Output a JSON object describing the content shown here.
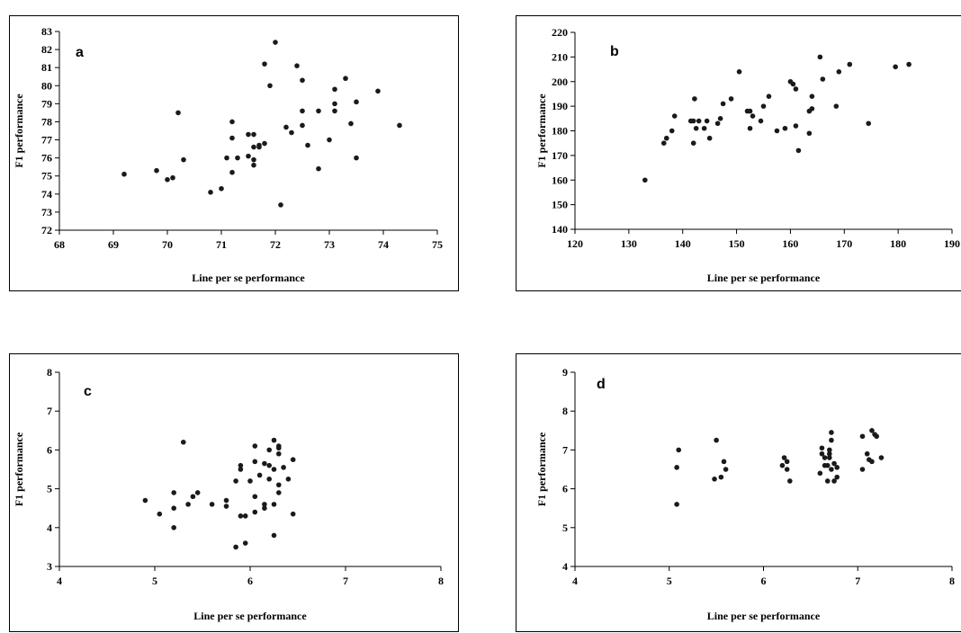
{
  "chart_data": [
    {
      "id": "a",
      "type": "scatter",
      "panel_label": "a",
      "xlabel": "Line per se performance",
      "ylabel": "F1 performance",
      "xlim": [
        68,
        75
      ],
      "ylim": [
        72,
        83
      ],
      "xticks": [
        68,
        69,
        70,
        71,
        72,
        73,
        74,
        75
      ],
      "yticks": [
        72,
        73,
        74,
        75,
        76,
        77,
        78,
        79,
        80,
        81,
        82,
        83
      ],
      "grid": false,
      "legend": "none",
      "points": [
        [
          69.2,
          75.1
        ],
        [
          69.8,
          75.3
        ],
        [
          70.0,
          74.8
        ],
        [
          70.1,
          74.9
        ],
        [
          70.2,
          78.5
        ],
        [
          70.3,
          75.9
        ],
        [
          70.8,
          74.1
        ],
        [
          71.0,
          74.3
        ],
        [
          71.1,
          76.0
        ],
        [
          71.2,
          78.0
        ],
        [
          71.2,
          77.1
        ],
        [
          71.2,
          75.2
        ],
        [
          71.3,
          76.0
        ],
        [
          71.5,
          76.1
        ],
        [
          71.5,
          77.3
        ],
        [
          71.6,
          75.9
        ],
        [
          71.6,
          77.3
        ],
        [
          71.6,
          76.6
        ],
        [
          71.6,
          75.6
        ],
        [
          71.7,
          76.6
        ],
        [
          71.7,
          76.7
        ],
        [
          71.8,
          81.2
        ],
        [
          71.8,
          76.8
        ],
        [
          71.9,
          80.0
        ],
        [
          72.0,
          82.4
        ],
        [
          72.1,
          73.4
        ],
        [
          72.2,
          77.7
        ],
        [
          72.3,
          77.4
        ],
        [
          72.4,
          81.1
        ],
        [
          72.5,
          78.6
        ],
        [
          72.5,
          80.3
        ],
        [
          72.5,
          77.8
        ],
        [
          72.6,
          76.7
        ],
        [
          72.8,
          78.6
        ],
        [
          72.8,
          75.4
        ],
        [
          73.0,
          77.0
        ],
        [
          73.1,
          79.8
        ],
        [
          73.1,
          79.0
        ],
        [
          73.1,
          78.6
        ],
        [
          73.3,
          80.4
        ],
        [
          73.4,
          77.9
        ],
        [
          73.5,
          79.1
        ],
        [
          73.5,
          76.0
        ],
        [
          73.9,
          79.7
        ],
        [
          74.3,
          77.8
        ]
      ]
    },
    {
      "id": "b",
      "type": "scatter",
      "panel_label": "b",
      "xlabel": "Line per se performance",
      "ylabel": "F1 performance",
      "xlim": [
        120,
        190
      ],
      "ylim": [
        140,
        220
      ],
      "xticks": [
        120,
        130,
        140,
        150,
        160,
        170,
        180,
        190
      ],
      "yticks": [
        140,
        150,
        160,
        170,
        180,
        190,
        200,
        210,
        220
      ],
      "grid": false,
      "legend": "none",
      "points": [
        [
          133,
          160
        ],
        [
          136.5,
          175
        ],
        [
          137,
          177
        ],
        [
          138,
          180
        ],
        [
          138.5,
          186
        ],
        [
          141.5,
          184
        ],
        [
          142,
          175
        ],
        [
          142,
          184
        ],
        [
          142.2,
          193
        ],
        [
          142.5,
          181
        ],
        [
          143,
          184
        ],
        [
          144,
          181
        ],
        [
          144.5,
          184
        ],
        [
          145,
          177
        ],
        [
          146.5,
          183
        ],
        [
          147,
          185
        ],
        [
          147.5,
          191
        ],
        [
          149,
          193
        ],
        [
          150.5,
          204
        ],
        [
          152,
          188
        ],
        [
          152.5,
          188
        ],
        [
          152.5,
          181
        ],
        [
          153,
          186
        ],
        [
          154.5,
          184
        ],
        [
          155,
          190
        ],
        [
          156,
          194
        ],
        [
          157.5,
          180
        ],
        [
          159,
          181
        ],
        [
          160,
          200
        ],
        [
          160.5,
          199
        ],
        [
          161,
          197
        ],
        [
          161,
          182
        ],
        [
          161.5,
          172
        ],
        [
          163.5,
          179
        ],
        [
          163.5,
          188
        ],
        [
          164,
          189
        ],
        [
          164,
          194
        ],
        [
          165.5,
          210
        ],
        [
          166,
          201
        ],
        [
          168.5,
          190
        ],
        [
          169,
          204
        ],
        [
          171,
          207
        ],
        [
          174.5,
          183
        ],
        [
          179.5,
          206
        ],
        [
          182,
          207
        ]
      ]
    },
    {
      "id": "c",
      "type": "scatter",
      "panel_label": "c",
      "xlabel": "Line per se performance",
      "ylabel": "F1 performance",
      "xlim": [
        4,
        8
      ],
      "ylim": [
        3,
        8
      ],
      "xticks": [
        4,
        5,
        6,
        7,
        8
      ],
      "yticks": [
        3,
        4,
        5,
        6,
        7,
        8
      ],
      "grid": false,
      "legend": "none",
      "points": [
        [
          4.9,
          4.7
        ],
        [
          5.05,
          4.35
        ],
        [
          5.2,
          4.0
        ],
        [
          5.2,
          4.9
        ],
        [
          5.2,
          4.5
        ],
        [
          5.3,
          6.2
        ],
        [
          5.35,
          4.6
        ],
        [
          5.4,
          4.8
        ],
        [
          5.45,
          4.9
        ],
        [
          5.6,
          4.6
        ],
        [
          5.75,
          4.7
        ],
        [
          5.75,
          4.55
        ],
        [
          5.85,
          3.5
        ],
        [
          5.85,
          5.2
        ],
        [
          5.9,
          5.6
        ],
        [
          5.9,
          5.5
        ],
        [
          5.9,
          4.3
        ],
        [
          5.95,
          4.3
        ],
        [
          5.95,
          3.6
        ],
        [
          6.0,
          5.2
        ],
        [
          6.05,
          4.8
        ],
        [
          6.05,
          5.7
        ],
        [
          6.05,
          6.1
        ],
        [
          6.05,
          4.4
        ],
        [
          6.1,
          5.35
        ],
        [
          6.15,
          4.6
        ],
        [
          6.15,
          5.65
        ],
        [
          6.15,
          4.5
        ],
        [
          6.2,
          5.6
        ],
        [
          6.2,
          6.0
        ],
        [
          6.2,
          5.25
        ],
        [
          6.25,
          6.25
        ],
        [
          6.25,
          5.5
        ],
        [
          6.25,
          4.6
        ],
        [
          6.25,
          3.8
        ],
        [
          6.3,
          5.9
        ],
        [
          6.3,
          6.05
        ],
        [
          6.3,
          6.1
        ],
        [
          6.3,
          5.1
        ],
        [
          6.3,
          4.9
        ],
        [
          6.35,
          5.55
        ],
        [
          6.4,
          5.25
        ],
        [
          6.45,
          4.35
        ],
        [
          6.45,
          5.75
        ]
      ]
    },
    {
      "id": "d",
      "type": "scatter",
      "panel_label": "d",
      "xlabel": "Line per se performance",
      "ylabel": "F1 performance",
      "xlim": [
        4,
        8
      ],
      "ylim": [
        4,
        9
      ],
      "xticks": [
        4,
        5,
        6,
        7,
        8
      ],
      "yticks": [
        4,
        5,
        6,
        7,
        8,
        9
      ],
      "grid": false,
      "legend": "none",
      "points": [
        [
          5.08,
          5.6
        ],
        [
          5.08,
          6.55
        ],
        [
          5.1,
          7.0
        ],
        [
          5.48,
          6.25
        ],
        [
          5.5,
          7.25
        ],
        [
          5.55,
          6.3
        ],
        [
          5.58,
          6.7
        ],
        [
          5.6,
          6.5
        ],
        [
          6.2,
          6.6
        ],
        [
          6.22,
          6.8
        ],
        [
          6.25,
          6.5
        ],
        [
          6.25,
          6.7
        ],
        [
          6.28,
          6.2
        ],
        [
          6.6,
          6.4
        ],
        [
          6.62,
          7.05
        ],
        [
          6.62,
          6.9
        ],
        [
          6.65,
          6.8
        ],
        [
          6.65,
          6.6
        ],
        [
          6.68,
          6.6
        ],
        [
          6.68,
          6.2
        ],
        [
          6.7,
          6.9
        ],
        [
          6.7,
          6.8
        ],
        [
          6.7,
          7.0
        ],
        [
          6.72,
          7.25
        ],
        [
          6.72,
          7.45
        ],
        [
          6.72,
          6.5
        ],
        [
          6.75,
          6.2
        ],
        [
          6.75,
          6.65
        ],
        [
          6.78,
          6.3
        ],
        [
          6.78,
          6.55
        ],
        [
          7.05,
          7.35
        ],
        [
          7.05,
          6.5
        ],
        [
          7.1,
          6.9
        ],
        [
          7.12,
          6.75
        ],
        [
          7.15,
          7.5
        ],
        [
          7.15,
          6.7
        ],
        [
          7.18,
          7.4
        ],
        [
          7.2,
          7.35
        ],
        [
          7.25,
          6.8
        ]
      ]
    }
  ]
}
